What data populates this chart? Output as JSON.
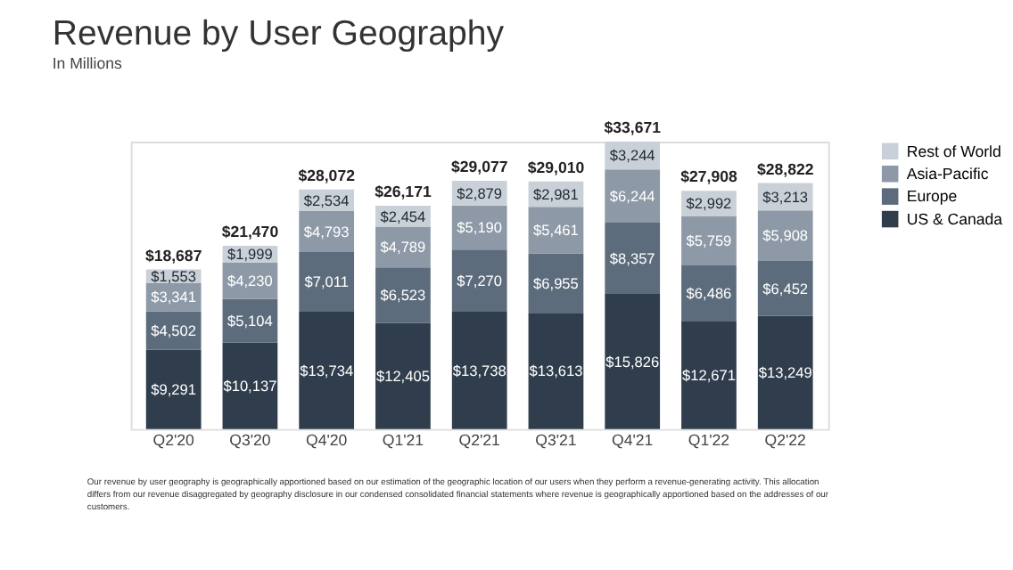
{
  "chart_data": {
    "type": "bar",
    "title": "Revenue by User Geography",
    "subtitle": "In Millions",
    "categories": [
      "Q2'20",
      "Q3'20",
      "Q4'20",
      "Q1'21",
      "Q2'21",
      "Q3'21",
      "Q4'21",
      "Q1'22",
      "Q2'22"
    ],
    "series": [
      {
        "name": "US & Canada",
        "color": "#2f3d4c",
        "values": [
          9291,
          10137,
          13734,
          12405,
          13738,
          13613,
          15826,
          12671,
          13249
        ],
        "value_labels": [
          "$9,291",
          "$10,137",
          "$13,734",
          "$12,405",
          "$13,738",
          "$13,613",
          "$15,826",
          "$12,671",
          "$13,249"
        ]
      },
      {
        "name": "Europe",
        "color": "#5d6c7c",
        "values": [
          4502,
          5104,
          7011,
          6523,
          7270,
          6955,
          8357,
          6486,
          6452
        ],
        "value_labels": [
          "$4,502",
          "$5,104",
          "$7,011",
          "$6,523",
          "$7,270",
          "$6,955",
          "$8,357",
          "$6,486",
          "$6,452"
        ]
      },
      {
        "name": "Asia-Pacific",
        "color": "#8d99a6",
        "values": [
          3341,
          4230,
          4793,
          4789,
          5190,
          5461,
          6244,
          5759,
          5908
        ],
        "value_labels": [
          "$3,341",
          "$4,230",
          "$4,793",
          "$4,789",
          "$5,190",
          "$5,461",
          "$6,244",
          "$5,759",
          "$5,908"
        ]
      },
      {
        "name": "Rest of World",
        "color": "#c9d0d7",
        "values": [
          1553,
          1999,
          2534,
          2454,
          2879,
          2981,
          3244,
          2992,
          3213
        ],
        "value_labels": [
          "$1,553",
          "$1,999",
          "$2,534",
          "$2,454",
          "$2,879",
          "$2,981",
          "$3,244",
          "$2,992",
          "$3,213"
        ]
      }
    ],
    "stacked": true,
    "totals": [
      "$18,687",
      "$21,470",
      "$28,072",
      "$26,171",
      "$29,077",
      "$29,010",
      "$33,671",
      "$27,908",
      "$28,822"
    ],
    "legend": "right",
    "annotations": [
      "Our revenue by user geography is geographically apportioned based on our estimation of the geographic location of our users when they perform a revenue-generating activity. This allocation differs from our revenue disaggregated by geography disclosure in our condensed consolidated financial statements where revenue is geographically apportioned based on the addresses of our customers."
    ]
  }
}
